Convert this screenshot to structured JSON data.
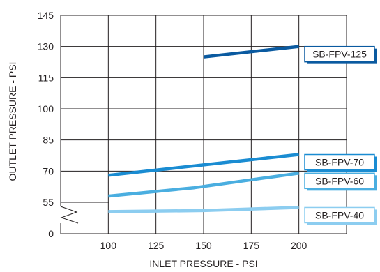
{
  "chart_data": {
    "type": "line",
    "title": "",
    "xlabel": "INLET PRESSURE - PSI",
    "ylabel": "OUTLET PRESSURE - PSI",
    "x_ticks": [
      100,
      125,
      150,
      175,
      200
    ],
    "y_ticks": [
      "145",
      "130",
      "115",
      "100",
      "85",
      "70",
      "55",
      "0"
    ],
    "xlim": [
      75,
      225
    ],
    "ylim_upper": [
      55,
      145
    ],
    "y_axis_break": "between 0 and 55",
    "grid": true,
    "legend": "right",
    "series": [
      {
        "name": "SB-FPV-125",
        "color": "#0a5aa0",
        "x": [
          150,
          200
        ],
        "y": [
          125,
          130
        ]
      },
      {
        "name": "SB-FPV-70",
        "color": "#1a8cd2",
        "x": [
          100,
          150,
          200
        ],
        "y": [
          68,
          73,
          78
        ]
      },
      {
        "name": "SB-FPV-60",
        "color": "#4aaee0",
        "x": [
          100,
          145,
          200
        ],
        "y": [
          58,
          62,
          69
        ]
      },
      {
        "name": "SB-FPV-40",
        "color": "#8ccdf0",
        "x": [
          100,
          150,
          200
        ],
        "y": [
          50.5,
          51,
          52.5
        ]
      }
    ]
  }
}
